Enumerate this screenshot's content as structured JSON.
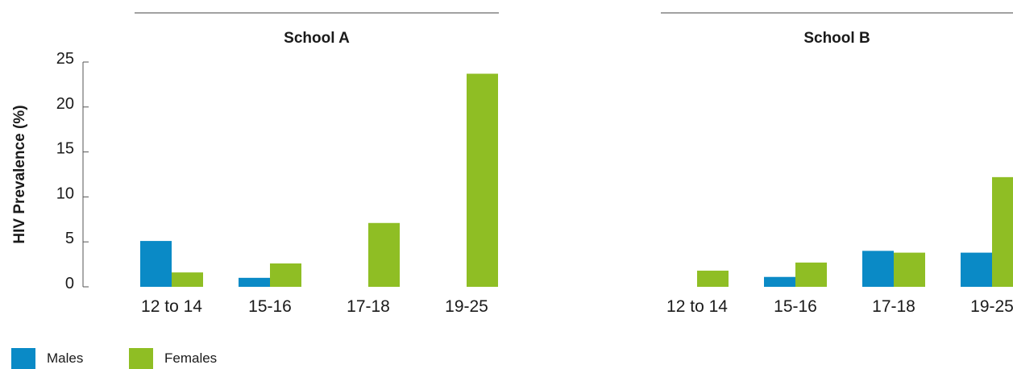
{
  "chart_data": [
    {
      "type": "bar",
      "title": "School A",
      "ylabel": "HIV Prevalence (%)",
      "ylim": [
        0,
        25
      ],
      "yticks": [
        0,
        5,
        10,
        15,
        20,
        25
      ],
      "categories": [
        "12 to 14",
        "15-16",
        "17-18",
        "19-25"
      ],
      "series": [
        {
          "name": "Males",
          "color": "#0a8ac6",
          "values": [
            5.1,
            1.0,
            0,
            0
          ]
        },
        {
          "name": "Females",
          "color": "#8fbe24",
          "values": [
            1.6,
            2.6,
            7.1,
            23.7
          ]
        }
      ]
    },
    {
      "type": "bar",
      "title": "School B",
      "ylabel": "",
      "ylim": [
        0,
        25
      ],
      "yticks": [],
      "categories": [
        "12 to 14",
        "15-16",
        "17-18",
        "19-25"
      ],
      "series": [
        {
          "name": "Males",
          "color": "#0a8ac6",
          "values": [
            0,
            1.1,
            4.0,
            3.8
          ]
        },
        {
          "name": "Females",
          "color": "#8fbe24",
          "values": [
            1.8,
            2.7,
            3.8,
            12.2
          ]
        }
      ]
    }
  ],
  "legend": {
    "items": [
      {
        "label": "Males",
        "color": "#0a8ac6"
      },
      {
        "label": "Females",
        "color": "#8fbe24"
      }
    ]
  }
}
